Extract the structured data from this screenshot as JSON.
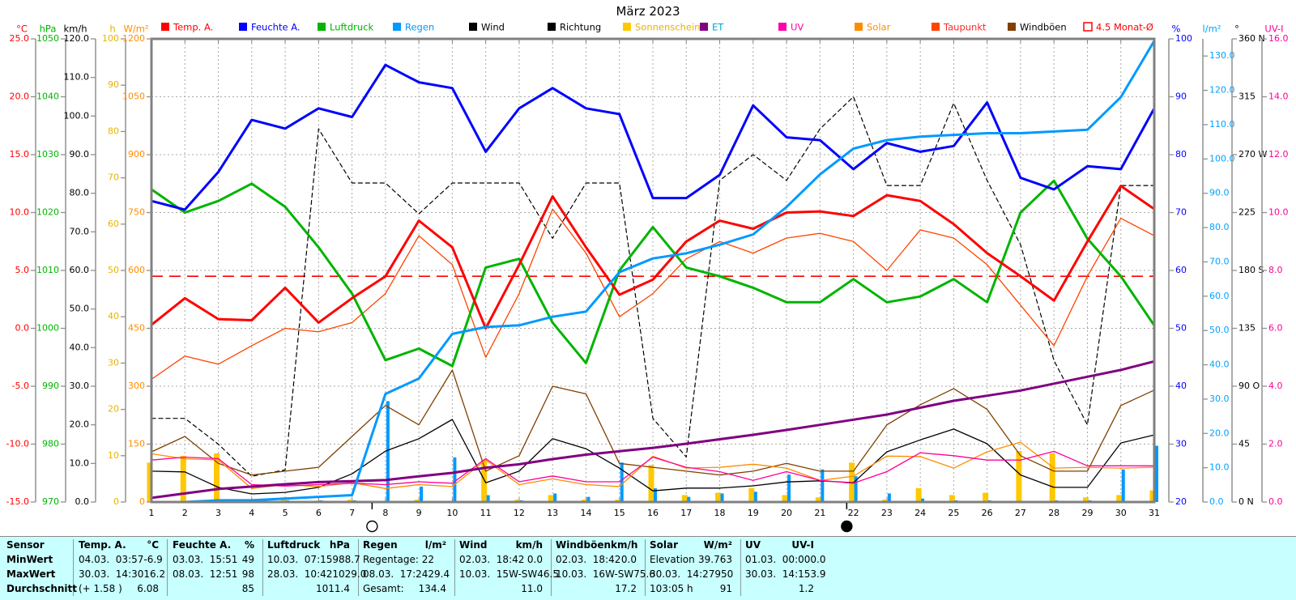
{
  "title": "März 2023",
  "legend": [
    {
      "label": "Temp. A.",
      "color": "#ff0000",
      "text": "#ff0000",
      "open": false
    },
    {
      "label": "Feuchte A.",
      "color": "#0000ff",
      "text": "#0000ff",
      "open": false
    },
    {
      "label": "Luftdruck",
      "color": "#00b400",
      "text": "#00b400",
      "open": false
    },
    {
      "label": "Regen",
      "color": "#0099ff",
      "text": "#0099ff",
      "open": false
    },
    {
      "label": "Wind",
      "color": "#000000",
      "text": "#000000",
      "open": false
    },
    {
      "label": "Richtung",
      "color": "#000000",
      "text": "#000000",
      "open": false
    },
    {
      "label": "Sonnenschein",
      "color": "#ffc800",
      "text": "#e8b000",
      "open": false
    },
    {
      "label": "ET",
      "color": "#800080",
      "text": "#00a8cc",
      "open": false
    },
    {
      "label": "UV",
      "color": "#ff00aa",
      "text": "#ff00aa",
      "open": false
    },
    {
      "label": "Solar",
      "color": "#ff8c00",
      "text": "#ff8c00",
      "open": false
    },
    {
      "label": "Taupunkt",
      "color": "#ff4500",
      "text": "#ff2a2a",
      "open": false
    },
    {
      "label": "Windböen",
      "color": "#7f4000",
      "text": "#000000",
      "open": false
    },
    {
      "label": "4.5 Monat-Ø",
      "color": "#ff0000",
      "text": "#ff0000",
      "open": true
    }
  ],
  "chart_data": {
    "type": "line",
    "title": "März 2023",
    "days": [
      1,
      2,
      3,
      4,
      5,
      6,
      7,
      8,
      9,
      10,
      11,
      12,
      13,
      14,
      15,
      16,
      17,
      18,
      19,
      20,
      21,
      22,
      23,
      24,
      25,
      26,
      27,
      28,
      29,
      30,
      31
    ],
    "axis_domains": {
      "°C": [
        -15,
        25
      ],
      "hPa": [
        970,
        1050
      ],
      "km/h": [
        0,
        120
      ],
      "h": [
        0,
        100
      ],
      "W/m²": [
        0,
        1200
      ],
      "%": [
        20,
        100
      ],
      "l/m²": [
        0,
        135
      ],
      "°": [
        0,
        360
      ],
      "UV-I": [
        0,
        16
      ]
    },
    "left_axes": [
      {
        "unit": "°C",
        "color": "#ff0000",
        "labels": [
          "25.0",
          "20.0",
          "15.0",
          "10.0",
          "5.0",
          "0.0",
          "-5.0",
          "-10.0",
          "-15.0"
        ]
      },
      {
        "unit": "hPa",
        "color": "#00b400",
        "labels": [
          "1050",
          "1040",
          "1030",
          "1020",
          "1010",
          "1000",
          "990",
          "980",
          "970"
        ]
      },
      {
        "unit": "km/h",
        "color": "#000000",
        "labels": [
          "120.0",
          "110.0",
          "100.0",
          "90.0",
          "80.0",
          "70.0",
          "60.0",
          "50.0",
          "40.0",
          "30.0",
          "20.0",
          "10.0",
          "0.0"
        ]
      },
      {
        "unit": "h",
        "color": "#e6b400",
        "labels": [
          "100",
          "90",
          "80",
          "70",
          "60",
          "50",
          "40",
          "30",
          "20",
          "10",
          "0"
        ]
      },
      {
        "unit": "W/m²",
        "color": "#ff8c00",
        "labels": [
          "1200",
          "1050",
          "900",
          "750",
          "600",
          "450",
          "300",
          "150",
          "0"
        ]
      }
    ],
    "right_axes": [
      {
        "unit": "%",
        "color": "#0000ff",
        "labels": [
          "100",
          "90",
          "80",
          "70",
          "60",
          "50",
          "40",
          "30",
          "20"
        ]
      },
      {
        "unit": "l/m²",
        "color": "#00a2ff",
        "labels": [
          "130.0",
          "120.0",
          "110.0",
          "100.0",
          "90.0",
          "80.0",
          "70.0",
          "60.0",
          "50.0",
          "40.0",
          "30.0",
          "20.0",
          "10.0",
          "0.0"
        ]
      },
      {
        "unit": "°",
        "color": "#000000",
        "labels": [
          "360 N",
          "315",
          "270 W",
          "225",
          "180 S",
          "135",
          "90 O",
          "45",
          "0  N"
        ]
      },
      {
        "unit": "UV-I",
        "color": "#ff0099",
        "labels": [
          "16.0",
          "14.0",
          "12.0",
          "10.0",
          "8.0",
          "6.0",
          "4.0",
          "2.0",
          "0.0"
        ]
      }
    ],
    "series": [
      {
        "id": "richtung",
        "name": "Richtung",
        "axis": "°",
        "color": "#000000",
        "width": 1.2,
        "dash": "5,4",
        "values": [
          65,
          65,
          45,
          20,
          25,
          290,
          248,
          248,
          224,
          248,
          248,
          248,
          205,
          248,
          248,
          65,
          35,
          250,
          270,
          250,
          290,
          315,
          246,
          246,
          310,
          250,
          200,
          110,
          60,
          246,
          246
        ]
      },
      {
        "id": "windboeen",
        "name": "Windböen",
        "axis": "km/h",
        "color": "#7f4000",
        "width": 1.3,
        "dash": null,
        "values": [
          13,
          17,
          10,
          7,
          8,
          9,
          17,
          25,
          20,
          34.2,
          8,
          12,
          30,
          28,
          10,
          9,
          8,
          7,
          8,
          10,
          8,
          8,
          20,
          25.2,
          29.4,
          24,
          12,
          8,
          8,
          25,
          29
        ]
      },
      {
        "id": "wind",
        "name": "Wind",
        "axis": "km/h",
        "color": "#000000",
        "width": 1.3,
        "dash": null,
        "values": [
          8,
          7.8,
          3.8,
          2.1,
          2.5,
          3.8,
          7.3,
          13.2,
          16.4,
          21.4,
          5,
          8,
          16.4,
          13.8,
          8.8,
          2.9,
          3.6,
          3.6,
          4.2,
          5.2,
          5.5,
          5,
          13,
          16.1,
          18.9,
          15.1,
          7,
          3.8,
          3.8,
          15.3,
          17.4
        ]
      },
      {
        "id": "solar",
        "name": "Solar",
        "axis": "W/m²",
        "color": "#ff8c00",
        "width": 1.3,
        "dash": null,
        "values": [
          125,
          112,
          109,
          35,
          45,
          40,
          50,
          35,
          45,
          40,
          109,
          45,
          60,
          45,
          40,
          119,
          88,
          90,
          98,
          88,
          56,
          67,
          119,
          118,
          88,
          130,
          155,
          88,
          90,
          88,
          90
        ]
      },
      {
        "id": "uv",
        "name": "UV",
        "axis": "UV-I",
        "color": "#ff0099",
        "width": 1.3,
        "dash": null,
        "values": [
          1.45,
          1.55,
          1.5,
          0.6,
          0.55,
          0.6,
          0.65,
          0.6,
          0.7,
          0.65,
          1.5,
          0.7,
          0.9,
          0.7,
          0.7,
          1.55,
          1.2,
          1.05,
          0.75,
          1.05,
          0.75,
          0.65,
          1.05,
          1.7,
          1.6,
          1.45,
          1.45,
          1.75,
          1.25,
          1.25,
          1.25
        ]
      },
      {
        "id": "et",
        "name": "ET",
        "axis": "l/m²",
        "color": "#800080",
        "width": 3,
        "dash": null,
        "values": [
          1.2,
          2.5,
          3.8,
          4.5,
          5.2,
          5.8,
          6.1,
          6.4,
          7.5,
          8.5,
          10,
          11,
          12.5,
          13.8,
          14.8,
          15.8,
          17,
          18.3,
          19.6,
          21,
          22.5,
          24,
          25.5,
          27.5,
          29.5,
          31,
          32.5,
          34.5,
          36.5,
          38.5,
          41
        ]
      },
      {
        "id": "taupunkt",
        "name": "Taupunkt",
        "axis": "°C",
        "color": "#ff4500",
        "width": 1.3,
        "dash": null,
        "values": [
          -4.4,
          -2.4,
          -3.1,
          -1.5,
          0,
          -0.3,
          0.5,
          3,
          8,
          5.5,
          -2.5,
          3,
          10.3,
          6.5,
          1,
          3,
          6,
          7.5,
          6.5,
          7.8,
          8.2,
          7.5,
          5,
          8.5,
          7.8,
          5.5,
          2,
          -1.5,
          4.5,
          9.5,
          8
        ]
      },
      {
        "id": "luftdruck",
        "name": "Luftdruck",
        "axis": "hPa",
        "color": "#00b400",
        "width": 3,
        "dash": null,
        "values": [
          1024,
          1020,
          1022,
          1025,
          1021,
          1014,
          1006,
          994.5,
          996.5,
          993.5,
          1010.5,
          1012,
          1001,
          994,
          1010,
          1017.5,
          1010.5,
          1009,
          1007,
          1004.5,
          1004.5,
          1008.5,
          1004.5,
          1005.5,
          1008.5,
          1004.5,
          1020,
          1025.5,
          1015.5,
          1009,
          1000.5
        ]
      },
      {
        "id": "feuchte",
        "name": "Feuchte A.",
        "axis": "%",
        "color": "#0000ff",
        "width": 3,
        "dash": null,
        "values": [
          72,
          70.5,
          77,
          86,
          84.5,
          88,
          86.5,
          95.5,
          92.5,
          91.5,
          80.5,
          88,
          91.5,
          88,
          87,
          72.5,
          72.5,
          76.5,
          88.5,
          83,
          82.5,
          77.5,
          82,
          80.5,
          81.5,
          89,
          76,
          74,
          78,
          77.5,
          88
        ]
      },
      {
        "id": "temp",
        "name": "Temp. A.",
        "axis": "°C",
        "color": "#ff0000",
        "width": 3,
        "dash": null,
        "values": [
          0.3,
          2.6,
          0.8,
          0.7,
          3.5,
          0.5,
          2.6,
          4.5,
          9.3,
          7,
          0,
          5.5,
          11.4,
          7,
          2.9,
          4.2,
          7.5,
          9.3,
          8.6,
          10,
          10.1,
          9.7,
          11.5,
          11,
          9,
          6.5,
          4.5,
          2.4,
          7.5,
          12.3,
          10.3
        ]
      },
      {
        "id": "regen-kum",
        "name": "Regen",
        "axis": "l/m²",
        "color": "#0099ff",
        "width": 3,
        "dash": null,
        "values": [
          0,
          0,
          0.5,
          0.5,
          1,
          1.5,
          2,
          31.5,
          36,
          49,
          51,
          51.5,
          54,
          55.5,
          67,
          71,
          72.5,
          75,
          78,
          86,
          95.5,
          103,
          105.5,
          106.5,
          107,
          107.5,
          107.5,
          108,
          108.5,
          118,
          134.4
        ]
      }
    ],
    "bars": [
      {
        "id": "sonnenschein",
        "name": "Sonnenschein",
        "axis": "h",
        "color": "#ffc800",
        "width": 7,
        "offset": -2,
        "values": [
          8.5,
          10,
          10.5,
          0.5,
          1,
          0.3,
          0.5,
          0.2,
          0.5,
          0.2,
          9,
          0.5,
          1.5,
          0.5,
          0.5,
          8,
          1.5,
          2,
          3,
          1.5,
          1,
          8.5,
          0.5,
          3,
          1.5,
          2,
          11,
          10.5,
          1,
          1.5,
          2.5
        ]
      },
      {
        "id": "regen-tag",
        "name": "Regen (Tag)",
        "axis": "l/m²",
        "color": "#0099ff",
        "width": 4,
        "offset": 3,
        "values": [
          0,
          0,
          0.5,
          0,
          0.5,
          0.5,
          0.5,
          29.4,
          4.5,
          13,
          2,
          0.5,
          2.5,
          1.5,
          11.5,
          4,
          1.5,
          2.5,
          3,
          8,
          9.5,
          7.5,
          2.5,
          1,
          0.5,
          0.5,
          0,
          0.5,
          0.5,
          9.5,
          16.4
        ]
      }
    ],
    "avg_line": {
      "label": "4.5 Monat-Ø",
      "value": 4.5,
      "axis": "°C",
      "color": "#ff0000"
    },
    "moon_markers": [
      {
        "type": "full-moon",
        "day": 7.6
      },
      {
        "type": "new-moon",
        "day": 21.8
      }
    ],
    "grid": true,
    "legend_position": "top"
  },
  "table": {
    "row_headers": [
      "Sensor",
      "MinWert",
      "MaxWert",
      "Durchschnitt"
    ],
    "columns": [
      {
        "name": "Temp. A.",
        "unit": "°C",
        "min": [
          "04.03.  03:57",
          "-6.9"
        ],
        "max": [
          "30.03.  14:30",
          "16.2"
        ],
        "avg": [
          "(+ 1.58 )",
          "6.08"
        ]
      },
      {
        "name": "Feuchte A.",
        "unit": "%",
        "min": [
          "03.03.  15:51",
          "49"
        ],
        "max": [
          "08.03.  12:51",
          "98"
        ],
        "avg": [
          "",
          "85"
        ]
      },
      {
        "name": "Luftdruck",
        "unit": "hPa",
        "min": [
          "10.03.  07:15",
          "988.7"
        ],
        "max": [
          "28.03.  10:42",
          "1029.0"
        ],
        "avg": [
          "",
          "1011.4"
        ]
      },
      {
        "name": "Regen",
        "unit": "l/m²",
        "min": [
          "Regentage: 22",
          ""
        ],
        "max": [
          "08.03.  17:24",
          "29.4"
        ],
        "avg": [
          "Gesamt:",
          "134.4"
        ]
      },
      {
        "name": "Wind",
        "unit": "km/h",
        "min": [
          "02.03.  18:42",
          "0.0"
        ],
        "max": [
          "10.03.  15W-SW",
          "46.5"
        ],
        "avg": [
          "",
          "11.0"
        ]
      },
      {
        "name": "Windböen",
        "unit": "km/h",
        "min": [
          "02.03.  18:42",
          "0.0"
        ],
        "max": [
          "10.03.  16W-SW",
          "75.6"
        ],
        "avg": [
          "",
          "17.2"
        ]
      },
      {
        "name": "Solar",
        "unit": "W/m²",
        "min": [
          "Elevation",
          "39.763"
        ],
        "max": [
          "30.03.  14:27",
          "950"
        ],
        "avg": [
          "103:05 h",
          "91"
        ]
      },
      {
        "name": "UV",
        "unit": "UV-I",
        "min": [
          "01.03.  00:00",
          "0.0"
        ],
        "max": [
          "30.03.  14:15",
          "3.9"
        ],
        "avg": [
          "",
          "1.2"
        ]
      }
    ]
  }
}
